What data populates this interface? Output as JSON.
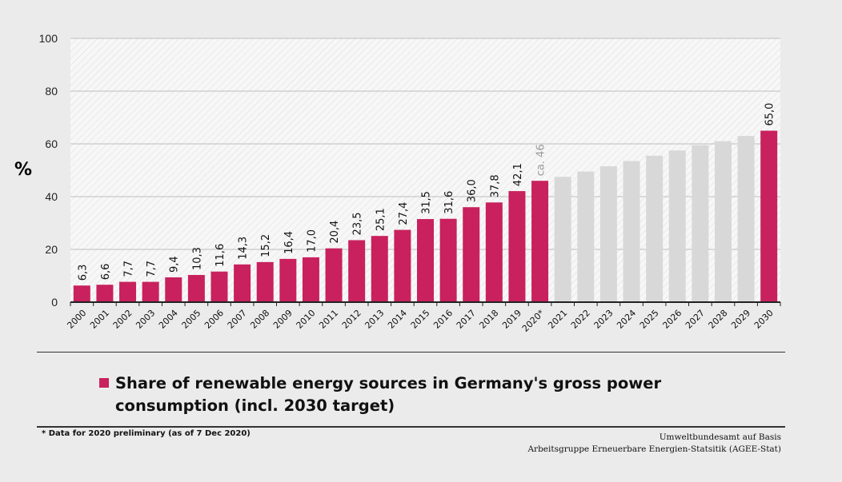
{
  "chart_data": {
    "type": "bar",
    "unit_label": "%",
    "ylim": [
      0,
      100
    ],
    "y_ticks": [
      "0",
      "20",
      "40",
      "60",
      "80",
      "100"
    ],
    "grid": true,
    "categories": [
      "2000",
      "2001",
      "2002",
      "2003",
      "2004",
      "2005",
      "2006",
      "2007",
      "2008",
      "2009",
      "2010",
      "2011",
      "2012",
      "2013",
      "2014",
      "2015",
      "2016",
      "2017",
      "2018",
      "2019",
      "2020*",
      "2021",
      "2022",
      "2023",
      "2024",
      "2025",
      "2026",
      "2027",
      "2028",
      "2029",
      "2030"
    ],
    "values": [
      6.3,
      6.6,
      7.7,
      7.7,
      9.4,
      10.3,
      11.6,
      14.3,
      15.2,
      16.4,
      17.0,
      20.4,
      23.5,
      25.1,
      27.4,
      31.5,
      31.6,
      36.0,
      37.8,
      42.1,
      46,
      null,
      null,
      null,
      null,
      null,
      null,
      null,
      null,
      null,
      65.0
    ],
    "value_labels": [
      "6,3",
      "6,6",
      "7,7",
      "7,7",
      "9,4",
      "10,3",
      "11,6",
      "14,3",
      "15,2",
      "16,4",
      "17,0",
      "20,4",
      "23,5",
      "25,1",
      "27,4",
      "31,5",
      "31,6",
      "36,0",
      "37,8",
      "42,1",
      "",
      "",
      "",
      "",
      "",
      "",
      "",
      "",
      "",
      "",
      "65,0"
    ],
    "annotation": "ca. 46",
    "target_path_values": [
      47.5,
      49.5,
      51.5,
      53.5,
      55.5,
      57.5,
      59.5,
      61.0,
      63.0
    ],
    "bar_color": "#c8215e",
    "path_color": "#d8d8d8",
    "annotation_color": "#9a9a9a",
    "legend": "Share of renewable energy sources in Germany's gross power consumption (incl. 2030 target)"
  },
  "footnote": "* Data for 2020 preliminary (as of 7 Dec 2020)",
  "source_lines": [
    "Umweltbundesamt auf Basis",
    "Arbeitsgruppe Erneuerbare Energien-Statsitik (AGEE-Stat)"
  ]
}
